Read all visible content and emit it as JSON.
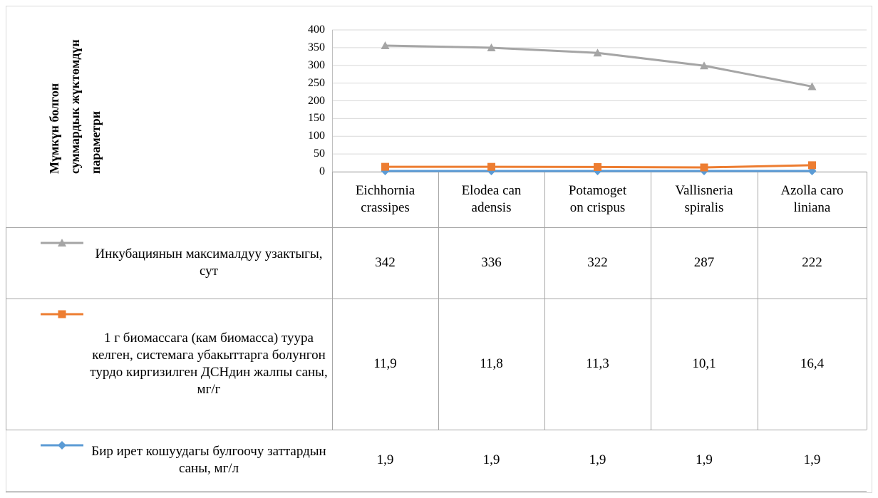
{
  "chart_data": {
    "type": "line",
    "stacked": true,
    "y_label": "Мүмкүн болгон суммардык жүктөмдүн параметри",
    "categories": [
      "Eichhornia crassipes",
      "Elodea canadensis",
      "Potamogeton crispus",
      "Vallisneria spiralis",
      "Azolla caroliniana"
    ],
    "series": [
      {
        "name": "Инкубациянын максималдуу узактыгы, сут",
        "color": "#a5a5a5",
        "marker": "triangle",
        "values": [
          342,
          336,
          322,
          287,
          222
        ]
      },
      {
        "name": "1 г биомассага (кам биомасса) туура келген, системага убакыттарга болунгон турдо киргизилген ДСНдин жалпы саны, мг/г",
        "color": "#ed7d31",
        "marker": "square",
        "values": [
          11.9,
          11.8,
          11.3,
          10.1,
          16.4
        ],
        "value_labels": [
          "11,9",
          "11,8",
          "11,3",
          "10,1",
          "16,4"
        ]
      },
      {
        "name": "Бир ирет кошуудагы булгоочу заттардын саны, мг/л",
        "color": "#5b9bd5",
        "marker": "diamond",
        "values": [
          1.9,
          1.9,
          1.9,
          1.9,
          1.9
        ],
        "value_labels": [
          "1,9",
          "1,9",
          "1,9",
          "1,9",
          "1,9"
        ]
      }
    ],
    "ylim": [
      0,
      400
    ],
    "yticks": [
      0,
      50,
      100,
      150,
      200,
      250,
      300,
      350,
      400
    ],
    "grid": true
  }
}
